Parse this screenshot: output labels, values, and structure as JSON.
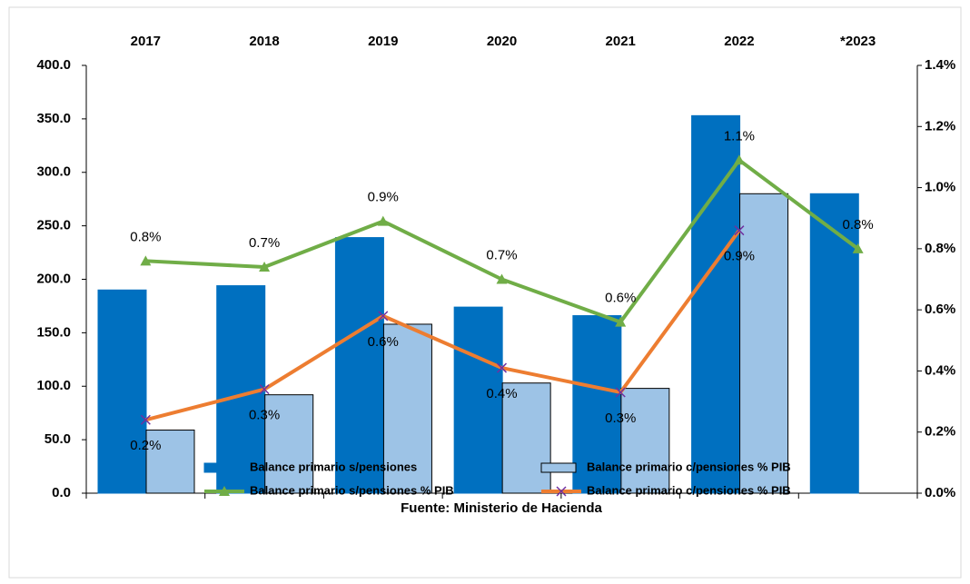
{
  "chart_data": {
    "type": "bar",
    "categories": [
      "2017",
      "2018",
      "2019",
      "2020",
      "2021",
      "2022",
      "*2023"
    ],
    "x_label": "Fuente: Ministerio de Hacienda",
    "ylim": [
      0,
      400
    ],
    "yticks": [
      {
        "value": 0,
        "label": "0.0"
      },
      {
        "value": 50,
        "label": "50.0"
      },
      {
        "value": 100,
        "label": "100.0"
      },
      {
        "value": 150,
        "label": "150.0"
      },
      {
        "value": 200,
        "label": "200.0"
      },
      {
        "value": 250,
        "label": "250.0"
      },
      {
        "value": 300,
        "label": "300.0"
      },
      {
        "value": 350,
        "label": "350.0"
      },
      {
        "value": 400,
        "label": "400.0"
      }
    ],
    "y2lim": [
      0,
      1.4
    ],
    "y2ticks": [
      {
        "value": 0,
        "label": "0.0%"
      },
      {
        "value": 0.2,
        "label": "0.2%"
      },
      {
        "value": 0.4,
        "label": "0.4%"
      },
      {
        "value": 0.6,
        "label": "0.6%"
      },
      {
        "value": 0.8,
        "label": "0.8%"
      },
      {
        "value": 1.0,
        "label": "1.0%"
      },
      {
        "value": 1.2,
        "label": "1.2%"
      },
      {
        "value": 1.4,
        "label": "1.4%"
      }
    ],
    "legend": "bottom",
    "series": [
      {
        "name": "Balance primario s/pensiones",
        "type": "bar",
        "color": "#0070c0",
        "values": [
          190,
          194,
          239,
          174,
          166,
          353,
          280
        ]
      },
      {
        "name": "Balance primario c/pensiones % PIB",
        "type": "bar",
        "color": "#9dc3e6",
        "values": [
          59,
          92,
          158,
          103,
          98,
          280,
          null
        ]
      },
      {
        "name": "Balance primario s/pensiones % PIB",
        "type": "line",
        "axis": "y2",
        "color": "#70ad47",
        "marker": "triangle",
        "values": [
          0.76,
          0.74,
          0.89,
          0.7,
          0.56,
          1.09,
          0.8
        ],
        "value_labels": [
          "0.8%",
          "0.7%",
          "0.9%",
          "0.7%",
          "0.6%",
          "1.1%",
          "0.8%"
        ]
      },
      {
        "name": "Balance primario c/pensiones % PIB",
        "type": "line",
        "axis": "y2",
        "color": "#ed7d31",
        "marker": "x",
        "marker_color": "#7030a0",
        "values": [
          0.24,
          0.34,
          0.58,
          0.41,
          0.33,
          0.86,
          null
        ],
        "value_labels": [
          "0.2%",
          "0.3%",
          "0.6%",
          "0.4%",
          "0.3%",
          "0.9%",
          null
        ]
      }
    ]
  }
}
